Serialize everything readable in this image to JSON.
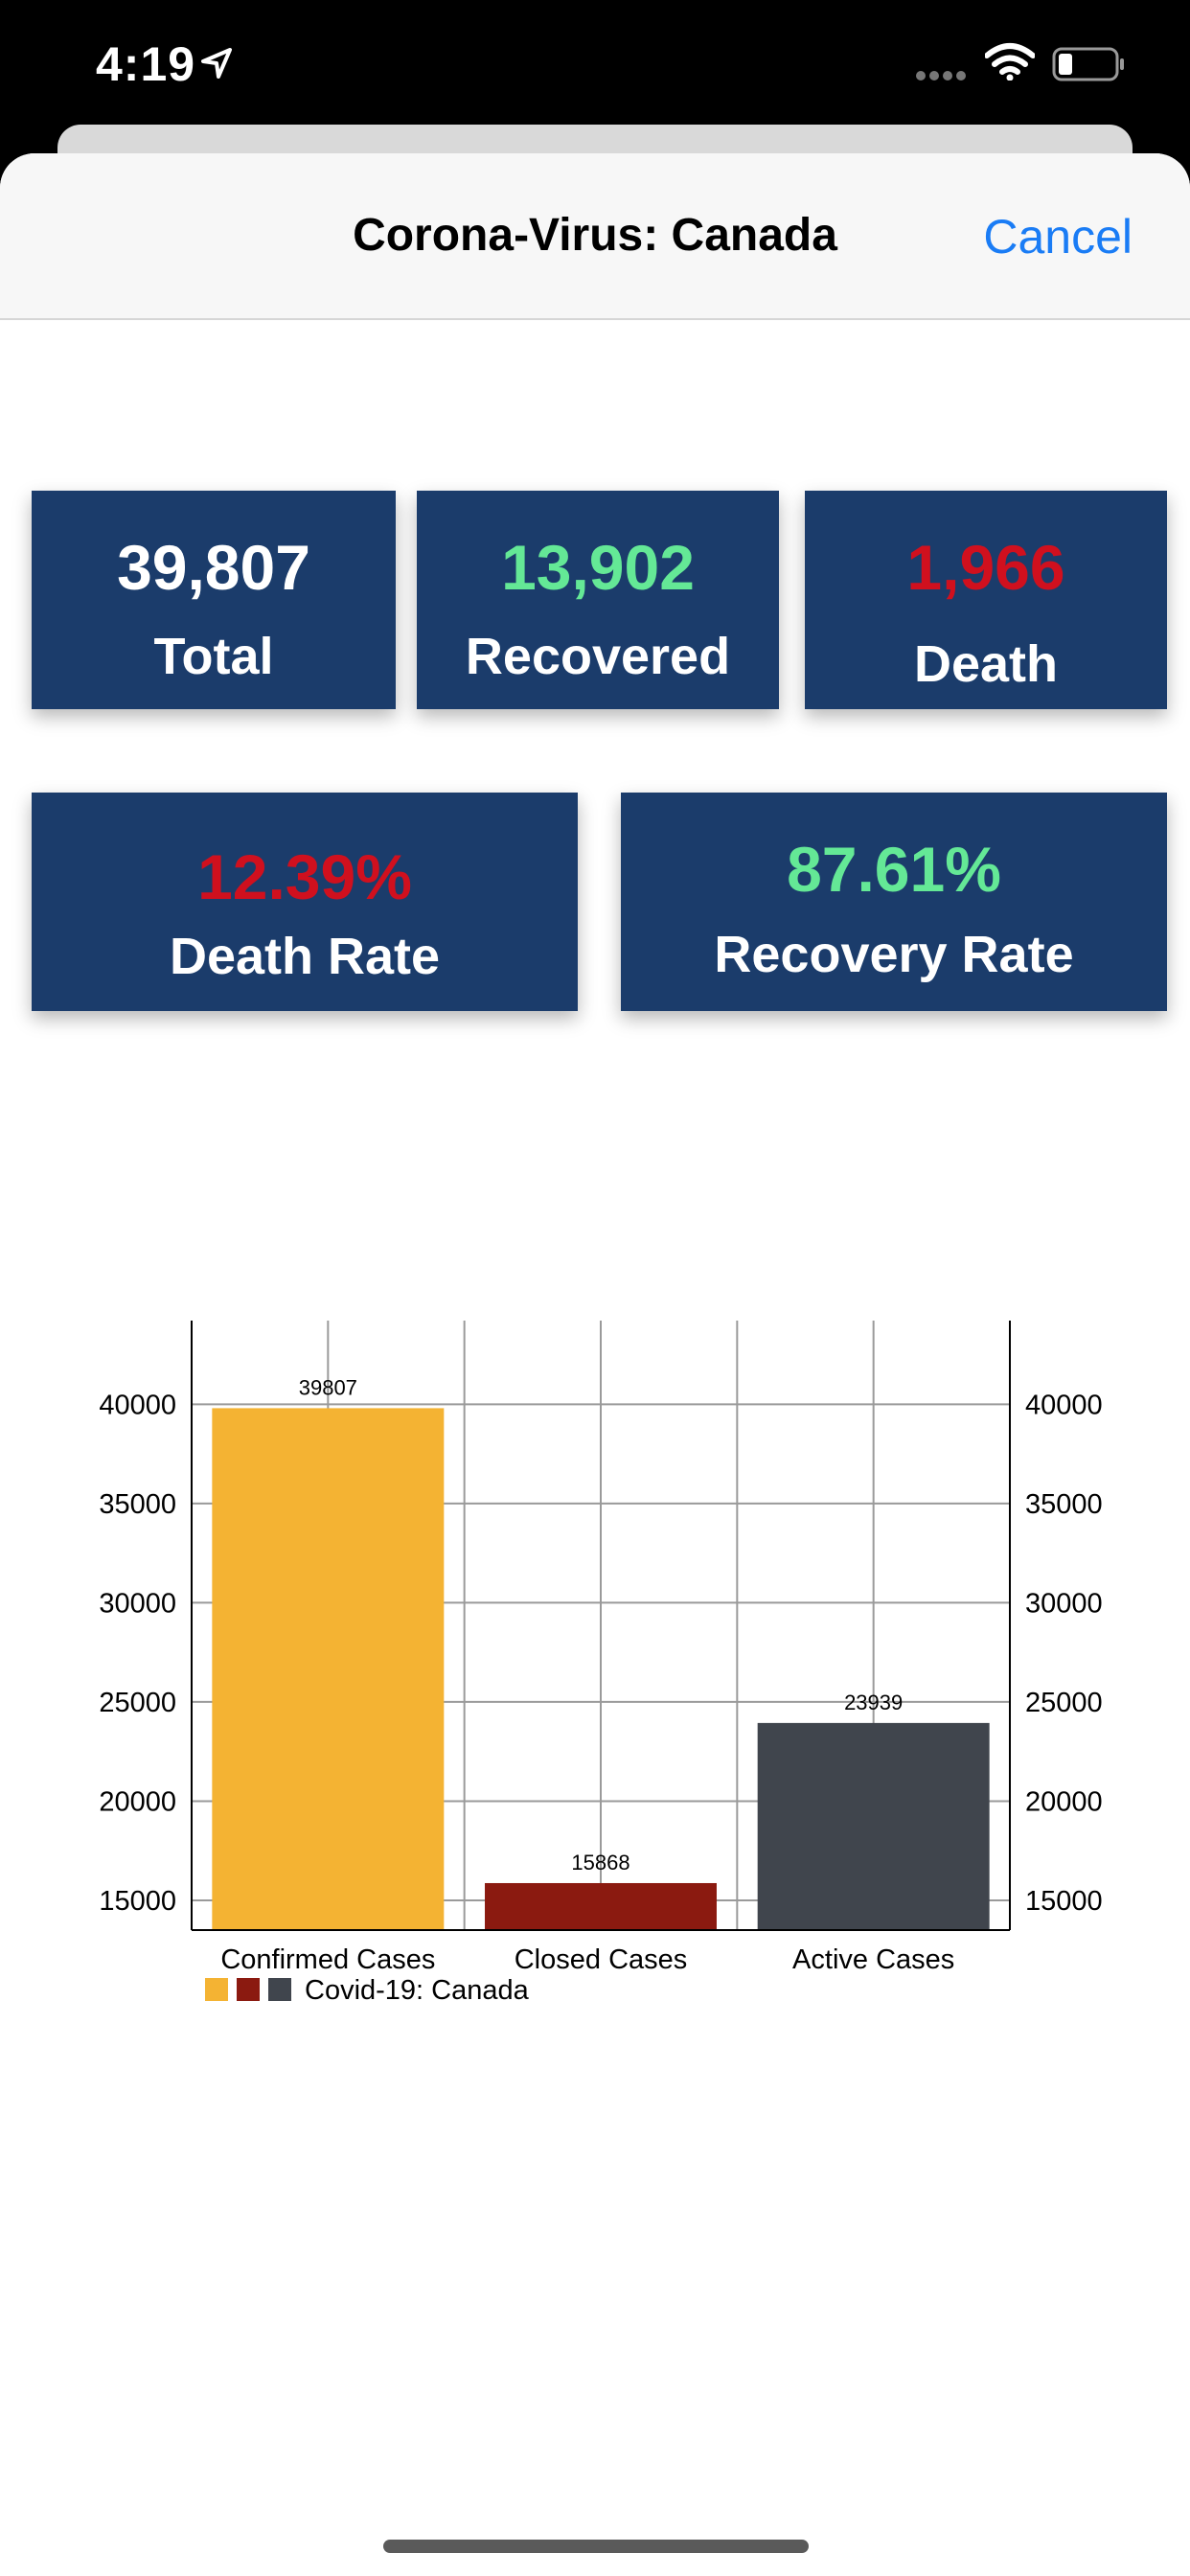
{
  "status_bar": {
    "time": "4:19"
  },
  "nav": {
    "title": "Corona-Virus: Canada",
    "cancel_label": "Cancel"
  },
  "stats": {
    "total": {
      "value": "39,807",
      "label": "Total",
      "color": "#ffffff"
    },
    "recovered": {
      "value": "13,902",
      "label": "Recovered",
      "color": "#64e896"
    },
    "death": {
      "value": "1,966",
      "label": "Death",
      "color": "#d0101e"
    },
    "death_rate": {
      "value": "12.39%",
      "label": "Death Rate",
      "color": "#d0101e"
    },
    "recovery_rate": {
      "value": "87.61%",
      "label": "Recovery Rate",
      "color": "#64e896"
    }
  },
  "chart_data": {
    "type": "bar",
    "categories": [
      "Confirmed Cases",
      "Closed Cases",
      "Active Cases"
    ],
    "values": [
      39807,
      15868,
      23939
    ],
    "colors": [
      "#f4b333",
      "#8b1a10",
      "#40454d"
    ],
    "legend": "Covid-19: Canada",
    "ylim": [
      13500,
      42000
    ],
    "yticks": [
      15000,
      20000,
      25000,
      30000,
      35000,
      40000
    ],
    "right_axis": true,
    "grid": true,
    "legend_position": "bottom-left"
  }
}
